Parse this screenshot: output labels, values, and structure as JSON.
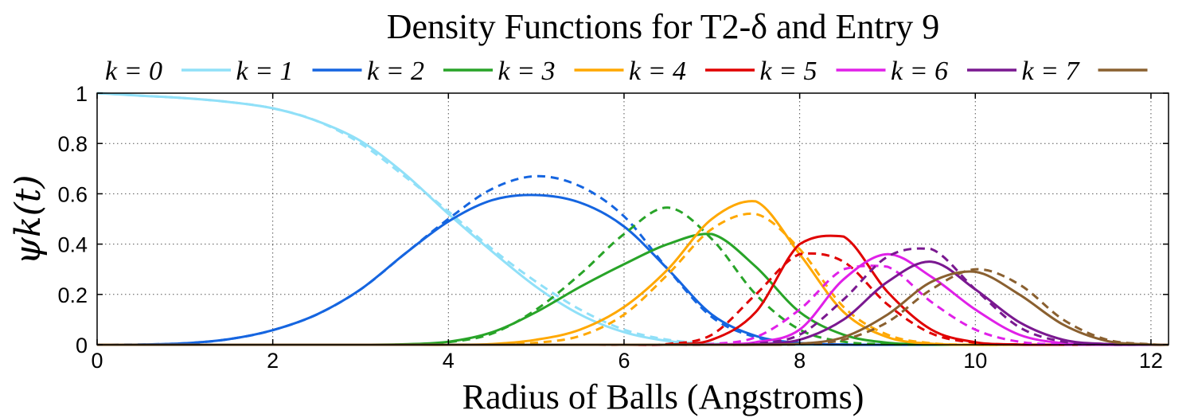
{
  "chart_data": {
    "type": "line",
    "title": "Density Functions for T2-δ and Entry 9",
    "xlabel": "Radius of Balls (Angstroms)",
    "ylabel": "ψk(t)",
    "xlim": [
      0,
      12.2
    ],
    "ylim": [
      0,
      1
    ],
    "xticks": [
      "0",
      "2",
      "4",
      "6",
      "8",
      "10",
      "12"
    ],
    "yticks": [
      "0",
      "0.2",
      "0.4",
      "0.6",
      "0.8",
      "1"
    ],
    "grid": true,
    "legend_position": "top",
    "x": [
      0,
      0.5,
      1,
      1.5,
      2,
      2.5,
      3,
      3.5,
      4,
      4.5,
      5,
      5.5,
      6,
      6.5,
      7,
      7.5,
      8,
      8.5,
      9,
      9.5,
      10,
      10.5,
      11,
      11.5,
      12,
      12.2
    ],
    "series": [
      {
        "name": "k = 0",
        "color": "#90e0f8",
        "values": [
          1.0,
          0.99,
          0.98,
          0.965,
          0.94,
          0.89,
          0.81,
          0.68,
          0.52,
          0.37,
          0.23,
          0.12,
          0.05,
          0.015,
          0.004,
          0.001,
          0,
          0,
          0,
          0,
          0,
          0,
          0,
          0,
          0,
          0
        ],
        "dashed_values": [
          1.0,
          0.99,
          0.98,
          0.965,
          0.94,
          0.89,
          0.8,
          0.67,
          0.53,
          0.38,
          0.25,
          0.14,
          0.06,
          0.02,
          0.005,
          0.001,
          0,
          0,
          0,
          0,
          0,
          0,
          0,
          0,
          0,
          0
        ]
      },
      {
        "name": "k = 1",
        "color": "#1565e0",
        "values": [
          0,
          0.001,
          0.006,
          0.022,
          0.058,
          0.12,
          0.22,
          0.36,
          0.49,
          0.575,
          0.595,
          0.565,
          0.47,
          0.3,
          0.12,
          0.035,
          0.007,
          0.001,
          0,
          0,
          0,
          0,
          0,
          0,
          0,
          0
        ],
        "dashed_values": [
          0,
          0.001,
          0.006,
          0.022,
          0.058,
          0.12,
          0.22,
          0.36,
          0.5,
          0.62,
          0.67,
          0.63,
          0.51,
          0.3,
          0.11,
          0.03,
          0.005,
          0.001,
          0,
          0,
          0,
          0,
          0,
          0,
          0,
          0
        ]
      },
      {
        "name": "k = 2",
        "color": "#28a428",
        "values": [
          0,
          0,
          0,
          0,
          0,
          0,
          0,
          0.002,
          0.012,
          0.05,
          0.13,
          0.23,
          0.32,
          0.4,
          0.44,
          0.31,
          0.13,
          0.04,
          0.008,
          0.001,
          0,
          0,
          0,
          0,
          0,
          0
        ],
        "dashed_values": [
          0,
          0,
          0,
          0,
          0,
          0,
          0,
          0.001,
          0.01,
          0.045,
          0.14,
          0.28,
          0.44,
          0.545,
          0.42,
          0.2,
          0.06,
          0.012,
          0.002,
          0,
          0,
          0,
          0,
          0,
          0,
          0
        ]
      },
      {
        "name": "k = 3",
        "color": "#ffa800",
        "values": [
          0,
          0,
          0,
          0,
          0,
          0,
          0,
          0,
          0,
          0.003,
          0.02,
          0.06,
          0.15,
          0.3,
          0.5,
          0.57,
          0.36,
          0.13,
          0.03,
          0.004,
          0,
          0,
          0,
          0,
          0,
          0
        ],
        "dashed_values": [
          0,
          0,
          0,
          0,
          0,
          0,
          0,
          0,
          0,
          0.001,
          0.008,
          0.035,
          0.12,
          0.28,
          0.46,
          0.52,
          0.38,
          0.15,
          0.04,
          0.006,
          0,
          0,
          0,
          0,
          0,
          0
        ]
      },
      {
        "name": "k = 4",
        "color": "#e00000",
        "values": [
          0,
          0,
          0,
          0,
          0,
          0,
          0,
          0,
          0,
          0,
          0,
          0,
          0,
          0.001,
          0.02,
          0.13,
          0.4,
          0.43,
          0.21,
          0.06,
          0.01,
          0.001,
          0,
          0,
          0,
          0
        ],
        "dashed_values": [
          0,
          0,
          0,
          0,
          0,
          0,
          0,
          0,
          0,
          0,
          0,
          0,
          0,
          0.003,
          0.04,
          0.2,
          0.36,
          0.33,
          0.16,
          0.045,
          0.008,
          0.001,
          0,
          0,
          0,
          0
        ]
      },
      {
        "name": "k = 5",
        "color": "#e020e8",
        "values": [
          0,
          0,
          0,
          0,
          0,
          0,
          0,
          0,
          0,
          0,
          0,
          0,
          0,
          0,
          0.001,
          0.01,
          0.06,
          0.26,
          0.36,
          0.27,
          0.14,
          0.04,
          0.006,
          0,
          0,
          0
        ],
        "dashed_values": [
          0,
          0,
          0,
          0,
          0,
          0,
          0,
          0,
          0,
          0,
          0,
          0,
          0,
          0,
          0.003,
          0.03,
          0.14,
          0.3,
          0.31,
          0.17,
          0.06,
          0.012,
          0.001,
          0,
          0,
          0
        ]
      },
      {
        "name": "k = 6",
        "color": "#7a1890",
        "values": [
          0,
          0,
          0,
          0,
          0,
          0,
          0,
          0,
          0,
          0,
          0,
          0,
          0,
          0,
          0,
          0.002,
          0.02,
          0.1,
          0.25,
          0.33,
          0.22,
          0.09,
          0.02,
          0.003,
          0,
          0
        ],
        "dashed_values": [
          0,
          0,
          0,
          0,
          0,
          0,
          0,
          0,
          0,
          0,
          0,
          0,
          0,
          0,
          0,
          0.004,
          0.04,
          0.18,
          0.35,
          0.38,
          0.22,
          0.07,
          0.012,
          0.001,
          0,
          0
        ]
      },
      {
        "name": "k = 7",
        "color": "#8a6030",
        "values": [
          0,
          0,
          0,
          0,
          0,
          0,
          0,
          0,
          0,
          0,
          0,
          0,
          0,
          0,
          0,
          0,
          0.004,
          0.03,
          0.12,
          0.25,
          0.29,
          0.2,
          0.08,
          0.015,
          0.001,
          0
        ],
        "dashed_values": [
          0,
          0,
          0,
          0,
          0,
          0,
          0,
          0,
          0,
          0,
          0,
          0,
          0,
          0,
          0,
          0,
          0.002,
          0.02,
          0.09,
          0.22,
          0.3,
          0.24,
          0.1,
          0.02,
          0.002,
          0
        ]
      }
    ]
  }
}
